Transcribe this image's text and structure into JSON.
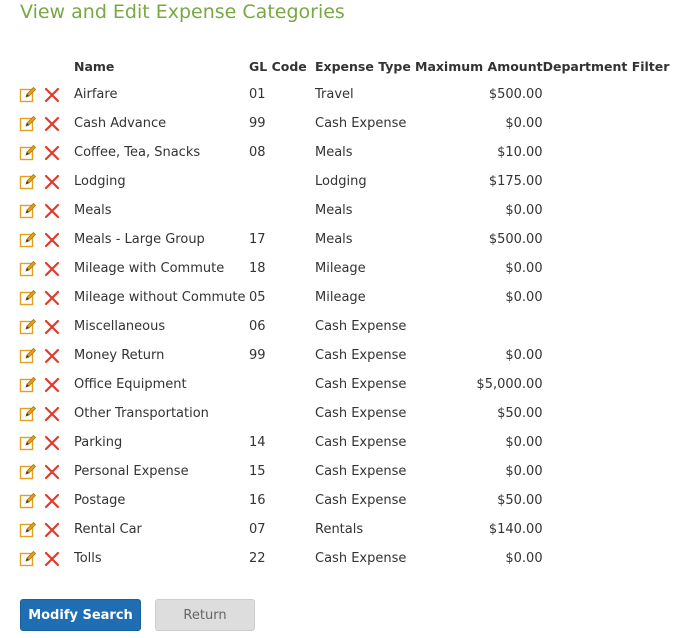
{
  "page": {
    "title": "View and Edit Expense Categories"
  },
  "table": {
    "columns": {
      "name": "Name",
      "gl_code": "GL Code",
      "expense_type": "Expense Type",
      "maximum_amount": "Maximum Amount",
      "department_filter": "Department Filter"
    },
    "rows": [
      {
        "name": "Airfare",
        "gl_code": "01",
        "expense_type": "Travel",
        "maximum_amount": "$500.00",
        "department_filter": ""
      },
      {
        "name": "Cash Advance",
        "gl_code": "99",
        "expense_type": "Cash Expense",
        "maximum_amount": "$0.00",
        "department_filter": ""
      },
      {
        "name": "Coffee, Tea, Snacks",
        "gl_code": "08",
        "expense_type": "Meals",
        "maximum_amount": "$10.00",
        "department_filter": ""
      },
      {
        "name": "Lodging",
        "gl_code": "",
        "expense_type": "Lodging",
        "maximum_amount": "$175.00",
        "department_filter": ""
      },
      {
        "name": "Meals",
        "gl_code": "",
        "expense_type": "Meals",
        "maximum_amount": "$0.00",
        "department_filter": ""
      },
      {
        "name": "Meals - Large Group",
        "gl_code": "17",
        "expense_type": "Meals",
        "maximum_amount": "$500.00",
        "department_filter": ""
      },
      {
        "name": "Mileage with Commute",
        "gl_code": "18",
        "expense_type": "Mileage",
        "maximum_amount": "$0.00",
        "department_filter": ""
      },
      {
        "name": "Mileage without Commute",
        "gl_code": "05",
        "expense_type": "Mileage",
        "maximum_amount": "$0.00",
        "department_filter": ""
      },
      {
        "name": "Miscellaneous",
        "gl_code": "06",
        "expense_type": "Cash Expense",
        "maximum_amount": "",
        "department_filter": ""
      },
      {
        "name": "Money Return",
        "gl_code": "99",
        "expense_type": "Cash Expense",
        "maximum_amount": "$0.00",
        "department_filter": ""
      },
      {
        "name": "Office Equipment",
        "gl_code": "",
        "expense_type": "Cash Expense",
        "maximum_amount": "$5,000.00",
        "department_filter": ""
      },
      {
        "name": "Other Transportation",
        "gl_code": "",
        "expense_type": "Cash Expense",
        "maximum_amount": "$50.00",
        "department_filter": ""
      },
      {
        "name": "Parking",
        "gl_code": "14",
        "expense_type": "Cash Expense",
        "maximum_amount": "$0.00",
        "department_filter": ""
      },
      {
        "name": "Personal Expense",
        "gl_code": "15",
        "expense_type": "Cash Expense",
        "maximum_amount": "$0.00",
        "department_filter": ""
      },
      {
        "name": "Postage",
        "gl_code": "16",
        "expense_type": "Cash Expense",
        "maximum_amount": "$50.00",
        "department_filter": ""
      },
      {
        "name": "Rental Car",
        "gl_code": "07",
        "expense_type": "Rentals",
        "maximum_amount": "$140.00",
        "department_filter": ""
      },
      {
        "name": "Tolls",
        "gl_code": "22",
        "expense_type": "Cash Expense",
        "maximum_amount": "$0.00",
        "department_filter": ""
      }
    ],
    "row_icons": {
      "edit": "edit-icon",
      "delete": "delete-icon"
    }
  },
  "footer": {
    "modify_search_label": "Modify Search",
    "return_label": "Return"
  },
  "colors": {
    "title": "#79a843",
    "primary_button": "#1f6db3",
    "secondary_button": "#dddddd",
    "edit_icon": "#e0a020",
    "delete_icon": "#e03a2a"
  }
}
